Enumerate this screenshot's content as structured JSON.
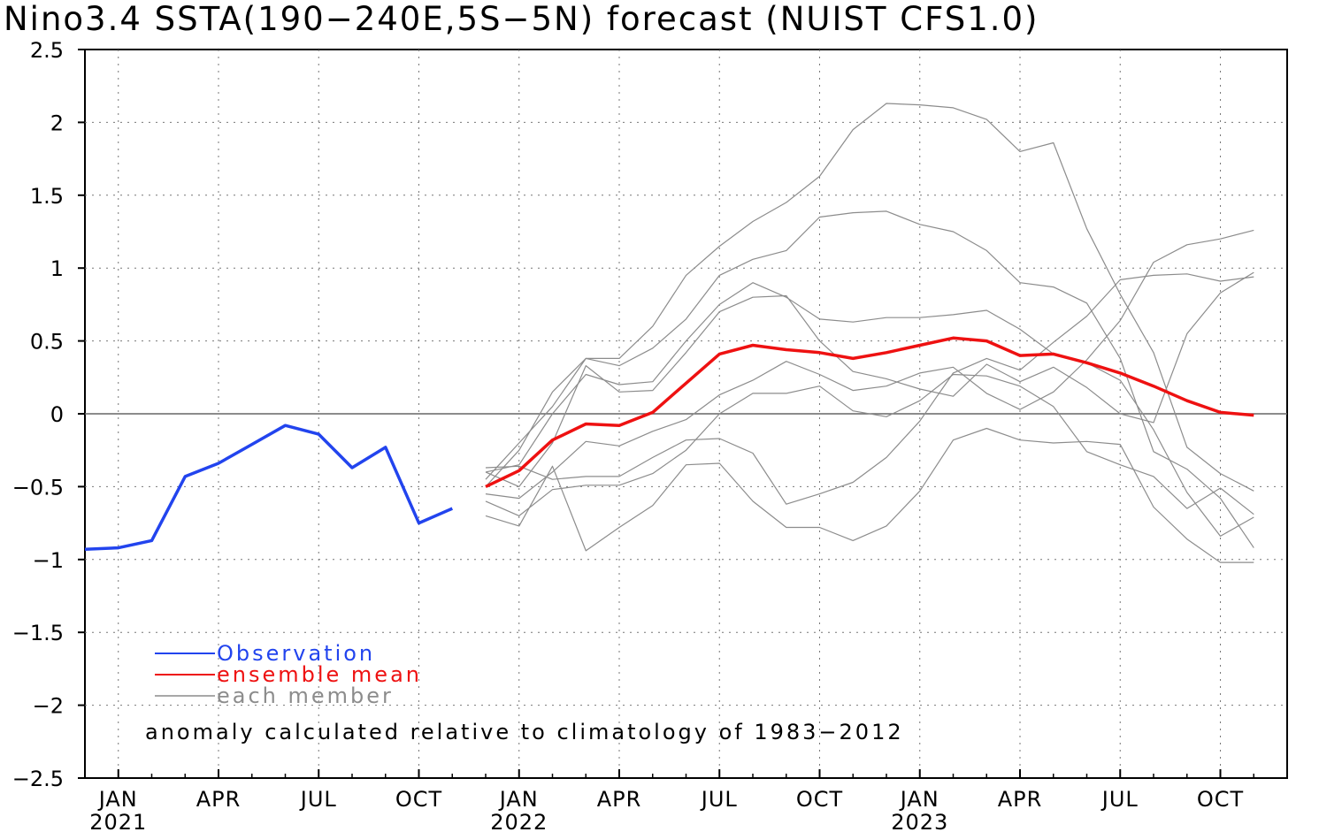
{
  "chart_data": {
    "type": "line",
    "title": "Nino3.4 SSTA(190−240E,5S−5N) forecast (NUIST CFS1.0)",
    "ylim": [
      -2.5,
      2.5
    ],
    "yticks": [
      {
        "v": 2.5,
        "label": "2.5"
      },
      {
        "v": 2,
        "label": "2"
      },
      {
        "v": 1.5,
        "label": "1.5"
      },
      {
        "v": 1,
        "label": "1"
      },
      {
        "v": 0.5,
        "label": "0.5"
      },
      {
        "v": 0,
        "label": "0"
      },
      {
        "v": -0.5,
        "label": "−0.5"
      },
      {
        "v": -1,
        "label": "−1"
      },
      {
        "v": -1.5,
        "label": "−1.5"
      },
      {
        "v": -2,
        "label": "−2"
      },
      {
        "v": -2.5,
        "label": "−2.5"
      }
    ],
    "x_start": "2020-12",
    "x_end": "2023-12",
    "xticks": [
      {
        "x": "2021-01",
        "label": "JAN",
        "year": "2021"
      },
      {
        "x": "2021-04",
        "label": "APR"
      },
      {
        "x": "2021-07",
        "label": "JUL"
      },
      {
        "x": "2021-10",
        "label": "OCT"
      },
      {
        "x": "2022-01",
        "label": "JAN",
        "year": "2022"
      },
      {
        "x": "2022-04",
        "label": "APR"
      },
      {
        "x": "2022-07",
        "label": "JUL"
      },
      {
        "x": "2022-10",
        "label": "OCT"
      },
      {
        "x": "2023-01",
        "label": "JAN",
        "year": "2023"
      },
      {
        "x": "2023-04",
        "label": "APR"
      },
      {
        "x": "2023-07",
        "label": "JUL"
      },
      {
        "x": "2023-10",
        "label": "OCT"
      }
    ],
    "grid": true,
    "zero_line": true,
    "colors": {
      "observation": "#2244ee",
      "mean": "#ee1111",
      "member": "#8c8c8c"
    },
    "observation": {
      "name": "Observation",
      "x_start": "2020-12",
      "values": [
        -0.93,
        -0.92,
        -0.87,
        -0.43,
        -0.34,
        -0.21,
        -0.08,
        -0.14,
        -0.37,
        -0.23,
        -0.75,
        -0.65
      ]
    },
    "ensemble_mean": {
      "name": "ensemble mean",
      "x_start": "2021-12",
      "values": [
        -0.5,
        -0.39,
        -0.18,
        -0.07,
        -0.08,
        0.01,
        0.21,
        0.41,
        0.47,
        0.44,
        0.42,
        0.38,
        0.42,
        0.47,
        0.52,
        0.5,
        0.4,
        0.41,
        0.35,
        0.28,
        0.19,
        0.09,
        0.01,
        -0.01
      ]
    },
    "members_name": "each member",
    "members_x_start": "2021-12",
    "members": [
      [
        -0.45,
        -0.2,
        0.05,
        0.38,
        0.38,
        0.6,
        0.95,
        1.15,
        1.32,
        1.45,
        1.63,
        1.95,
        2.13,
        2.12,
        2.1,
        2.02,
        1.8,
        1.86,
        1.27,
        0.82,
        0.42,
        -0.23,
        -0.41,
        -0.53
      ],
      [
        -0.5,
        -0.25,
        0.15,
        0.38,
        0.33,
        0.45,
        0.65,
        0.95,
        1.06,
        1.12,
        1.35,
        1.38,
        1.39,
        1.3,
        1.25,
        1.12,
        0.9,
        0.87,
        0.76,
        0.38,
        -0.26,
        -0.38,
        -0.58,
        -0.92
      ],
      [
        -0.4,
        -0.35,
        0.0,
        0.27,
        0.2,
        0.22,
        0.5,
        0.75,
        0.9,
        0.8,
        0.65,
        0.63,
        0.66,
        0.66,
        0.68,
        0.71,
        0.58,
        0.41,
        0.35,
        0.23,
        -0.11,
        -0.54,
        -0.84,
        -0.71
      ],
      [
        -0.37,
        -0.36,
        -0.45,
        -0.43,
        -0.43,
        -0.3,
        -0.18,
        -0.17,
        -0.27,
        -0.62,
        -0.55,
        -0.47,
        -0.3,
        -0.05,
        0.28,
        0.38,
        0.3,
        0.49,
        0.67,
        0.92,
        0.95,
        0.96,
        0.91,
        0.94
      ],
      [
        -0.55,
        -0.58,
        -0.4,
        -0.19,
        -0.22,
        -0.12,
        -0.04,
        0.13,
        0.23,
        0.36,
        0.27,
        0.16,
        0.19,
        0.28,
        0.32,
        0.14,
        0.03,
        0.15,
        0.37,
        0.64,
        1.04,
        1.16,
        1.2,
        1.26
      ],
      [
        -0.6,
        -0.7,
        -0.52,
        -0.49,
        -0.49,
        -0.41,
        -0.25,
        0.0,
        0.14,
        0.14,
        0.19,
        0.02,
        -0.02,
        0.09,
        0.27,
        0.26,
        0.19,
        0.05,
        -0.26,
        -0.35,
        -0.43,
        -0.65,
        -0.51,
        -0.69
      ],
      [
        -0.7,
        -0.77,
        -0.36,
        -0.94,
        -0.78,
        -0.63,
        -0.35,
        -0.34,
        -0.6,
        -0.78,
        -0.78,
        -0.87,
        -0.77,
        -0.53,
        -0.18,
        -0.1,
        -0.18,
        -0.2,
        -0.19,
        -0.21,
        -0.64,
        -0.86,
        -1.02,
        -1.02
      ],
      [
        -0.4,
        -0.5,
        -0.2,
        0.33,
        0.15,
        0.16,
        0.42,
        0.7,
        0.8,
        0.81,
        0.5,
        0.29,
        0.24,
        0.17,
        0.12,
        0.34,
        0.22,
        0.32,
        0.18,
        0.0,
        -0.06,
        0.55,
        0.83,
        0.97
      ]
    ],
    "legend": {
      "position": "bottom-left",
      "entries": [
        "Observation",
        "ensemble mean",
        "each member"
      ]
    },
    "annotation": "anomaly calculated relative to climatology of 1983−2012"
  }
}
